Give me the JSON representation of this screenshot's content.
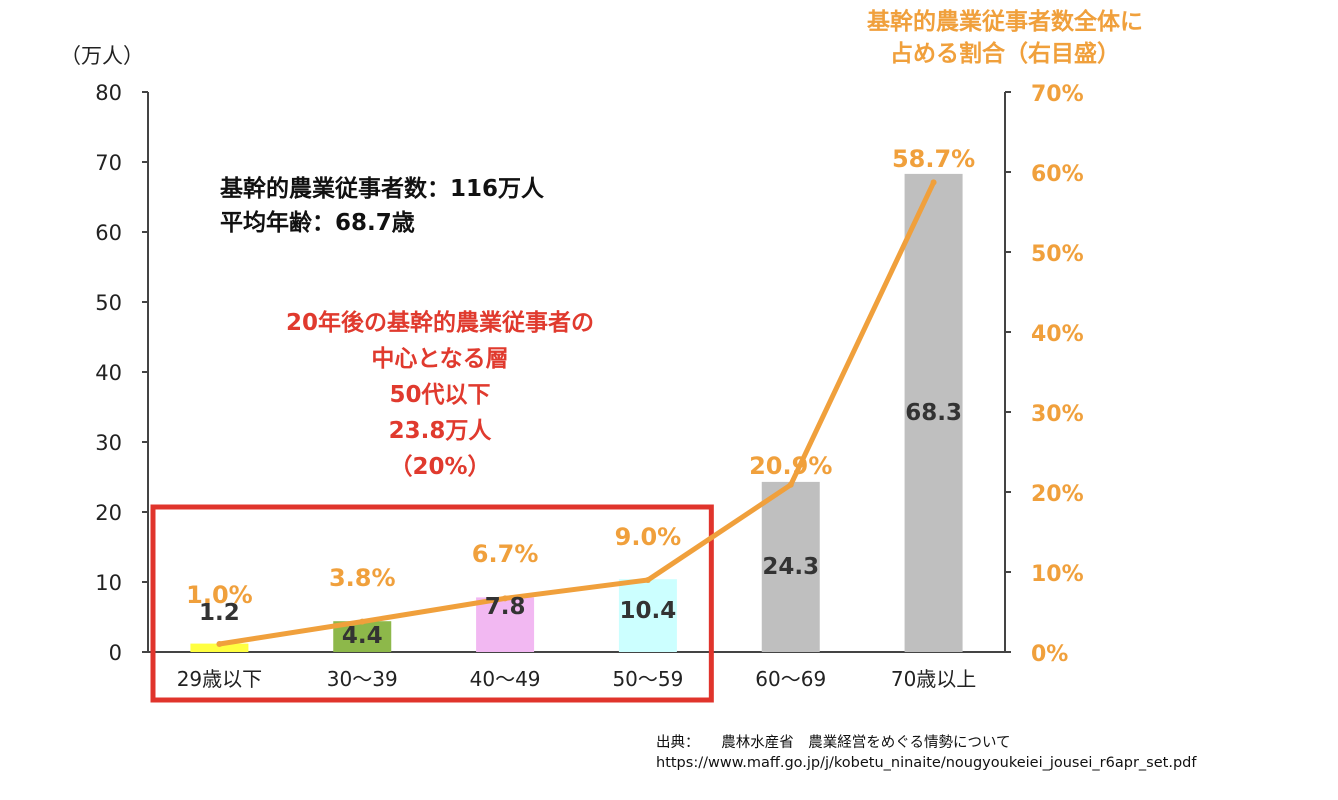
{
  "chart_data": {
    "type": "bar+line",
    "categories": [
      "29歳以下",
      "30～39",
      "40～49",
      "50～59",
      "60～69",
      "70歳以上"
    ],
    "series": [
      {
        "name": "基幹的農業従事者数",
        "axis": "left",
        "type": "bar",
        "values": [
          1.2,
          4.4,
          7.8,
          10.4,
          24.3,
          68.3
        ],
        "labels": [
          "1.2",
          "4.4",
          "7.8",
          "10.4",
          "24.3",
          "68.3"
        ],
        "colors": [
          "#FFFF40",
          "#8DB84A",
          "#F2B8F2",
          "#CCFFFF",
          "#BFBFBF",
          "#BFBFBF"
        ]
      },
      {
        "name": "基幹的農業従事者数全体に占める割合",
        "axis": "right",
        "type": "line",
        "values": [
          1.0,
          3.8,
          6.7,
          9.0,
          20.9,
          58.7
        ],
        "labels": [
          "1.0%",
          "3.8%",
          "6.7%",
          "9.0%",
          "20.9%",
          "58.7%"
        ],
        "color": "#F0A03C"
      }
    ],
    "left_axis": {
      "unit": "（万人）",
      "range": [
        0,
        80
      ],
      "ticks": [
        "0",
        "10",
        "20",
        "30",
        "40",
        "50",
        "60",
        "70",
        "80"
      ]
    },
    "right_axis": {
      "title": [
        "基幹的農業従事者数全体に",
        "占める割合（右目盛）"
      ],
      "range": [
        0,
        70
      ],
      "ticks": [
        "0%",
        "10%",
        "20%",
        "30%",
        "40%",
        "50%",
        "60%",
        "70%"
      ]
    },
    "highlight": {
      "categories": [
        "29歳以下",
        "30～39",
        "40～49",
        "50～59"
      ],
      "color": "#E0342C"
    }
  },
  "summary": {
    "line1": "基幹的農業従事者数：116万人",
    "line2": "平均年齢：68.7歳"
  },
  "note": {
    "line1": "20年後の基幹的農業従事者の",
    "line2": "中心となる層",
    "line3": "50代以下",
    "line4": "23.8万人",
    "line5": "（20%）"
  },
  "source": {
    "line1": "出典：　　農林水産省　農業経営をめぐる情勢について",
    "line2": "https://www.maff.go.jp/j/kobetu_ninaite/nougyoukeiei_jousei_r6apr_set.pdf"
  }
}
